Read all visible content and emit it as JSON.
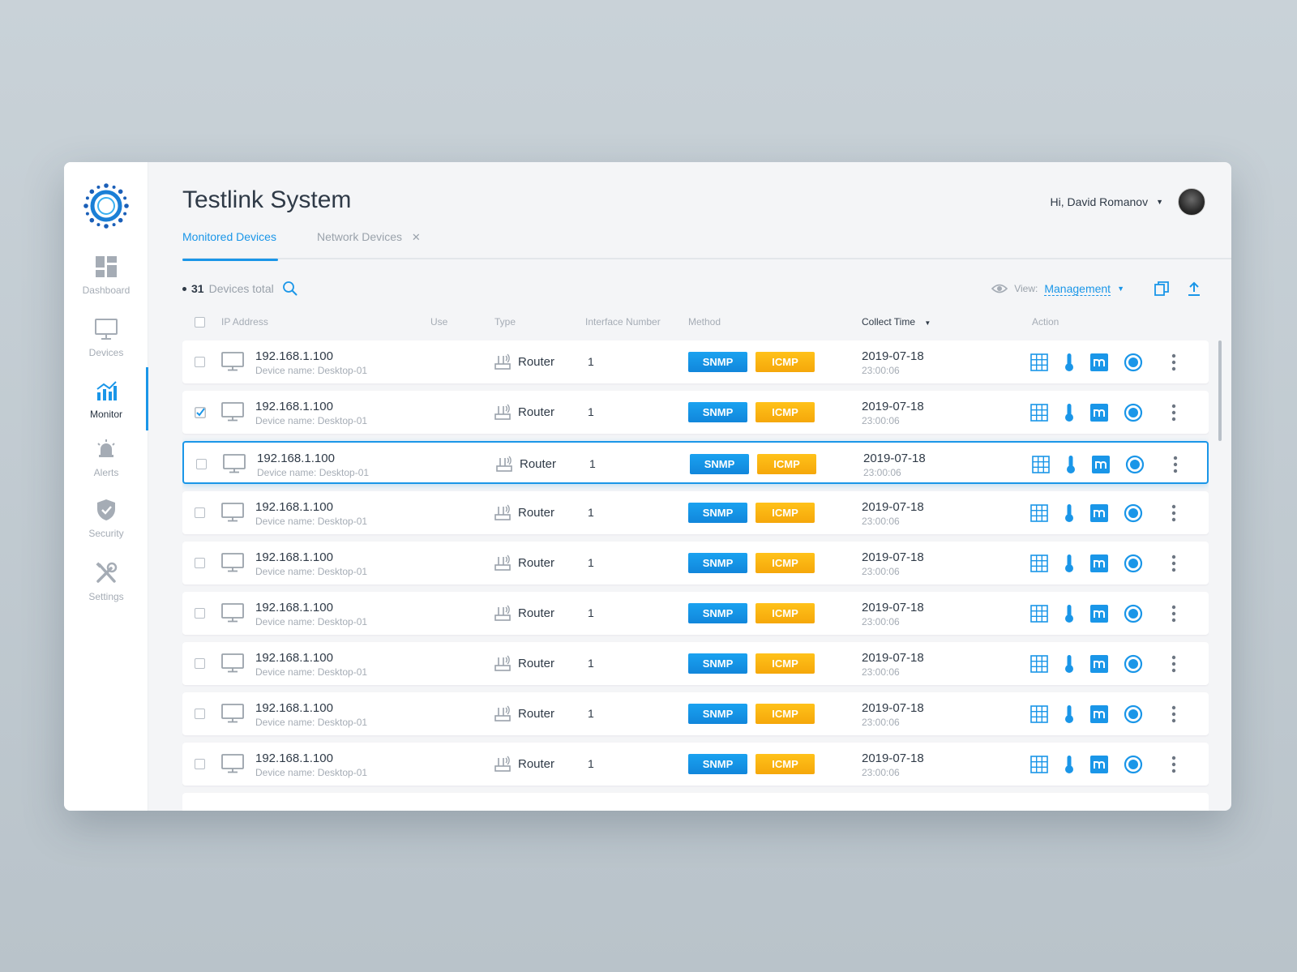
{
  "app": {
    "title": "Testlink System",
    "user_greeting": "Hi, David Romanov",
    "accent_color": "#1a96e8"
  },
  "sidebar": {
    "items": [
      {
        "label": "Dashboard",
        "icon": "dashboard-icon",
        "active": false
      },
      {
        "label": "Devices",
        "icon": "monitor-icon",
        "active": false
      },
      {
        "label": "Monitor",
        "icon": "chart-icon",
        "active": true
      },
      {
        "label": "Alerts",
        "icon": "alarm-icon",
        "active": false
      },
      {
        "label": "Security",
        "icon": "shield-icon",
        "active": false
      },
      {
        "label": "Settings",
        "icon": "tools-icon",
        "active": false
      }
    ]
  },
  "tabs": [
    {
      "label": "Monitored Devices",
      "active": true
    },
    {
      "label": "Network Devices",
      "active": false,
      "closable": true
    }
  ],
  "summary": {
    "count": "31",
    "label": "Devices total"
  },
  "view": {
    "label": "View:",
    "value": "Management"
  },
  "table": {
    "columns": [
      "IP Address",
      "Use",
      "Type",
      "Interface Number",
      "Method",
      "Collect Time",
      "Action"
    ],
    "sorted_column": "Collect Time",
    "rows": [
      {
        "ip": "192.168.1.100",
        "device_name": "Device name: Desktop-01",
        "type": "Router",
        "interface": "1",
        "methods": [
          "SNMP",
          "ICMP"
        ],
        "date": "2019-07-18",
        "time": "23:00:06",
        "checked": false,
        "highlight": false
      },
      {
        "ip": "192.168.1.100",
        "device_name": "Device name: Desktop-01",
        "type": "Router",
        "interface": "1",
        "methods": [
          "SNMP",
          "ICMP"
        ],
        "date": "2019-07-18",
        "time": "23:00:06",
        "checked": true,
        "highlight": false
      },
      {
        "ip": "192.168.1.100",
        "device_name": "Device name: Desktop-01",
        "type": "Router",
        "interface": "1",
        "methods": [
          "SNMP",
          "ICMP"
        ],
        "date": "2019-07-18",
        "time": "23:00:06",
        "checked": false,
        "highlight": true
      },
      {
        "ip": "192.168.1.100",
        "device_name": "Device name: Desktop-01",
        "type": "Router",
        "interface": "1",
        "methods": [
          "SNMP",
          "ICMP"
        ],
        "date": "2019-07-18",
        "time": "23:00:06",
        "checked": false,
        "highlight": false
      },
      {
        "ip": "192.168.1.100",
        "device_name": "Device name: Desktop-01",
        "type": "Router",
        "interface": "1",
        "methods": [
          "SNMP",
          "ICMP"
        ],
        "date": "2019-07-18",
        "time": "23:00:06",
        "checked": false,
        "highlight": false
      },
      {
        "ip": "192.168.1.100",
        "device_name": "Device name: Desktop-01",
        "type": "Router",
        "interface": "1",
        "methods": [
          "SNMP",
          "ICMP"
        ],
        "date": "2019-07-18",
        "time": "23:00:06",
        "checked": false,
        "highlight": false
      },
      {
        "ip": "192.168.1.100",
        "device_name": "Device name: Desktop-01",
        "type": "Router",
        "interface": "1",
        "methods": [
          "SNMP",
          "ICMP"
        ],
        "date": "2019-07-18",
        "time": "23:00:06",
        "checked": false,
        "highlight": false
      },
      {
        "ip": "192.168.1.100",
        "device_name": "Device name: Desktop-01",
        "type": "Router",
        "interface": "1",
        "methods": [
          "SNMP",
          "ICMP"
        ],
        "date": "2019-07-18",
        "time": "23:00:06",
        "checked": false,
        "highlight": false
      },
      {
        "ip": "192.168.1.100",
        "device_name": "Device name: Desktop-01",
        "type": "Router",
        "interface": "1",
        "methods": [
          "SNMP",
          "ICMP"
        ],
        "date": "2019-07-18",
        "time": "23:00:06",
        "checked": false,
        "highlight": false
      }
    ],
    "action_icons": [
      "grid-icon",
      "thermometer-icon",
      "monitor-m-icon",
      "ring-icon",
      "more-vertical-icon"
    ]
  }
}
